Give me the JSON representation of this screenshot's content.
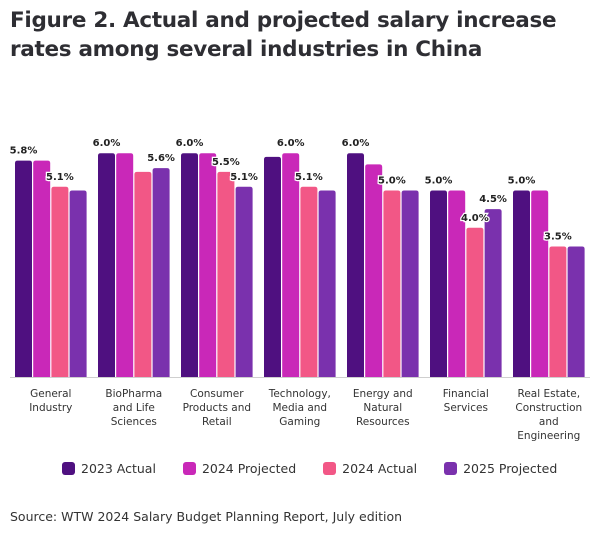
{
  "chart_data": {
    "type": "bar",
    "title": "Figure 2. Actual and projected salary increase rates among several industries in China",
    "xlabel": "",
    "ylabel": "",
    "ylim": [
      0,
      6.0
    ],
    "grid": false,
    "legend_position": "bottom",
    "categories": [
      [
        "General",
        "Industry"
      ],
      [
        "BioPharma",
        "and Life",
        "Sciences"
      ],
      [
        "Consumer",
        "Products and",
        "Retail"
      ],
      [
        "Technology,",
        "Media and",
        "Gaming"
      ],
      [
        "Energy and",
        "Natural",
        "Resources"
      ],
      [
        "Financial",
        "Services"
      ],
      [
        "Real Estate,",
        "Construction",
        "and",
        "Engineering"
      ]
    ],
    "series": [
      {
        "name": "2023 Actual",
        "color": "#4f1080",
        "values": [
          5.8,
          6.0,
          6.0,
          5.9,
          6.0,
          5.0,
          5.0
        ]
      },
      {
        "name": "2024 Projected",
        "color": "#c928b8",
        "values": [
          5.8,
          6.0,
          6.0,
          6.0,
          5.7,
          5.0,
          5.0
        ]
      },
      {
        "name": "2024 Actual",
        "color": "#f25786",
        "values": [
          5.1,
          5.5,
          5.5,
          5.1,
          5.0,
          4.0,
          3.5
        ]
      },
      {
        "name": "2025 Projected",
        "color": "#7a31ad",
        "values": [
          5.0,
          5.6,
          5.1,
          5.0,
          5.0,
          4.5,
          3.5
        ]
      }
    ],
    "data_labels": [
      {
        "category": 0,
        "series": 0,
        "text": "5.8%"
      },
      {
        "category": 0,
        "series": 2,
        "text": "5.1%"
      },
      {
        "category": 1,
        "series": 0,
        "text": "6.0%"
      },
      {
        "category": 1,
        "series": 3,
        "text": "5.6%"
      },
      {
        "category": 2,
        "series": 0,
        "text": "6.0%"
      },
      {
        "category": 2,
        "series": 2,
        "text": "5.5%"
      },
      {
        "category": 2,
        "series": 3,
        "text": "5.1%"
      },
      {
        "category": 3,
        "series": 1,
        "text": "6.0%"
      },
      {
        "category": 3,
        "series": 2,
        "text": "5.1%"
      },
      {
        "category": 4,
        "series": 0,
        "text": "6.0%"
      },
      {
        "category": 4,
        "series": 2,
        "text": "5.0%"
      },
      {
        "category": 5,
        "series": 0,
        "text": "5.0%"
      },
      {
        "category": 5,
        "series": 2,
        "text": "4.0%"
      },
      {
        "category": 5,
        "series": 3,
        "text": "4.5%"
      },
      {
        "category": 6,
        "series": 0,
        "text": "5.0%"
      },
      {
        "category": 6,
        "series": 2,
        "text": "3.5%"
      }
    ]
  },
  "title": "Figure 2. Actual and projected salary increase rates among several industries in China",
  "legend": [
    {
      "label": "2023 Actual",
      "color": "#4f1080"
    },
    {
      "label": "2024 Projected",
      "color": "#c928b8"
    },
    {
      "label": "2024 Actual",
      "color": "#f25786"
    },
    {
      "label": "2025 Projected",
      "color": "#7a31ad"
    }
  ],
  "source": "Source: WTW 2024 Salary Budget Planning Report, July edition"
}
